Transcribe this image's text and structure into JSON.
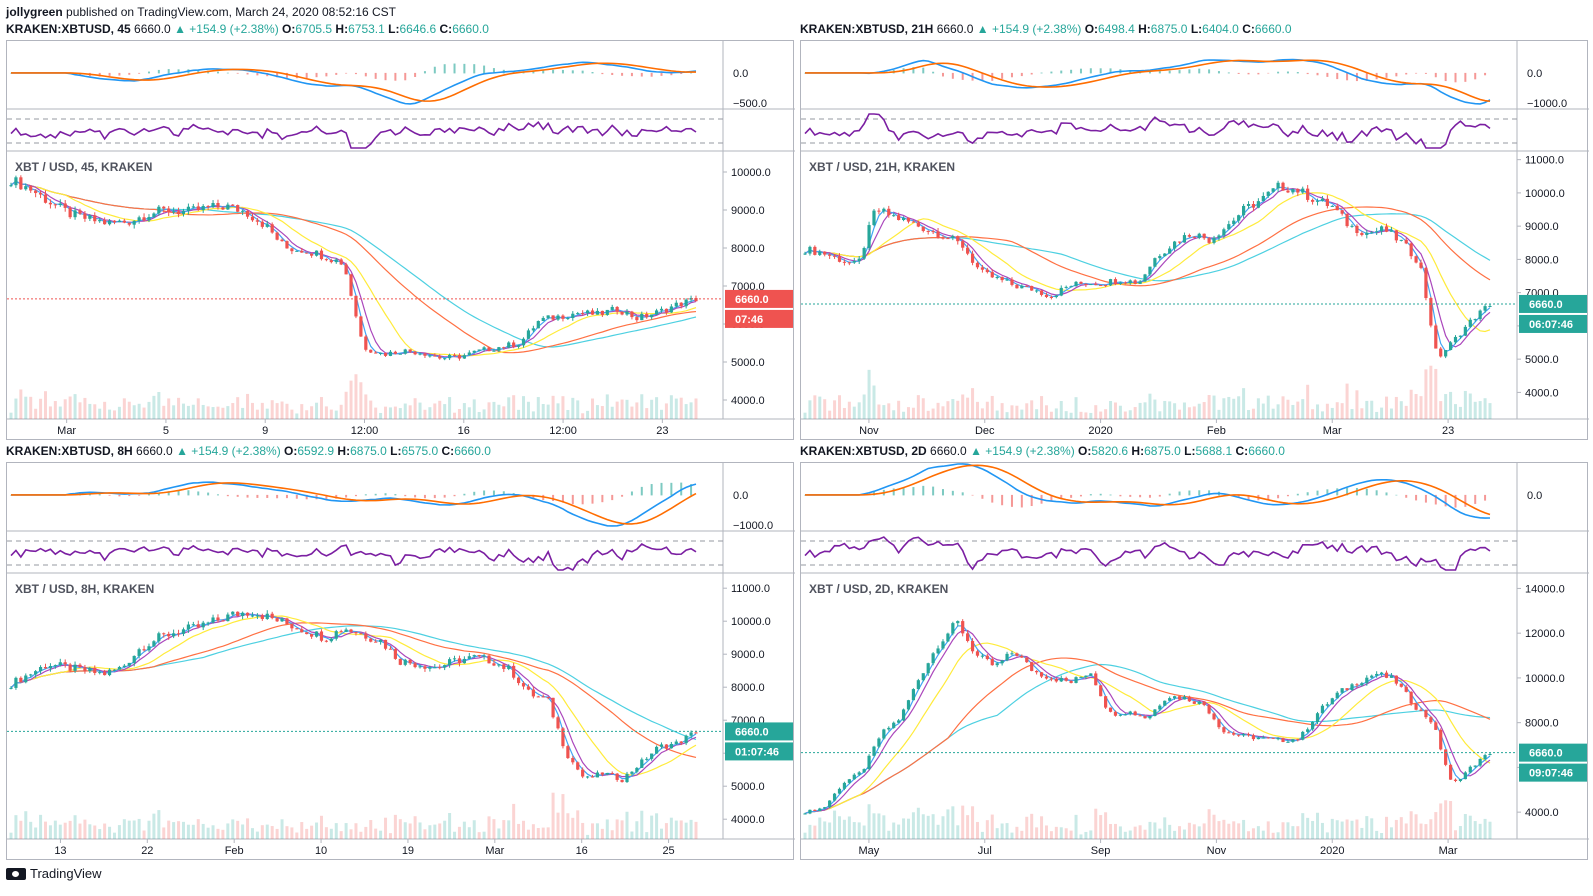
{
  "header": {
    "author": "jollygreen",
    "published": "published on TradingView.com, March 24, 2020 08:52:16 CST"
  },
  "footer": {
    "brand": "TradingView"
  },
  "colors": {
    "up": "#26a69a",
    "down": "#ef5350",
    "macd": "#2196f3",
    "signal": "#ff6d00",
    "rsi": "#7b1fa2",
    "ma_yellow": "#ffeb3b",
    "ma_cyan": "#4dd0e1",
    "ma_orange": "#ff7043",
    "price_line_red": "#ef5350",
    "price_line_teal": "#26a69a"
  },
  "panels": [
    {
      "id": "p45",
      "symbol": "KRAKEN:XBTUSD, 45",
      "price": "6660.0",
      "change": "▲ +154.9 (+2.38%)",
      "o": "6705.5",
      "h": "6753.1",
      "l": "6646.6",
      "c": "6660.0",
      "chart_label": "XBT / USD, 45, KRAKEN",
      "last_price_tag": "6660.0",
      "countdown": "07:46",
      "tag_color": "#ef5350",
      "macd_ticks": [
        "0.0",
        "−500.0"
      ],
      "x_labels": [
        "Mar",
        "5",
        "9",
        "12:00",
        "16",
        "12:00",
        "23"
      ]
    },
    {
      "id": "p21",
      "symbol": "KRAKEN:XBTUSD, 21H",
      "price": "6660.0",
      "change": "▲ +154.9 (+2.38%)",
      "o": "6498.4",
      "h": "6875.0",
      "l": "6404.0",
      "c": "6660.0",
      "chart_label": "XBT / USD, 21H, KRAKEN",
      "last_price_tag": "6660.0",
      "countdown": "06:07:46",
      "tag_color": "#26a69a",
      "macd_ticks": [
        "0.0",
        "−1000.0"
      ],
      "x_labels": [
        "Nov",
        "Dec",
        "2020",
        "Feb",
        "Mar",
        "23"
      ]
    },
    {
      "id": "p8",
      "symbol": "KRAKEN:XBTUSD, 8H",
      "price": "6660.0",
      "change": "▲ +154.9 (+2.38%)",
      "o": "6592.9",
      "h": "6875.0",
      "l": "6575.0",
      "c": "6660.0",
      "chart_label": "XBT / USD, 8H, KRAKEN",
      "last_price_tag": "6660.0",
      "countdown": "01:07:46",
      "tag_color": "#26a69a",
      "macd_ticks": [
        "0.0",
        "−1000.0"
      ],
      "x_labels": [
        "13",
        "22",
        "Feb",
        "10",
        "19",
        "Mar",
        "16",
        "25"
      ]
    },
    {
      "id": "p2d",
      "symbol": "KRAKEN:XBTUSD, 2D",
      "price": "6660.0",
      "change": "▲ +154.9 (+2.38%)",
      "o": "5820.6",
      "h": "6875.0",
      "l": "5688.1",
      "c": "6660.0",
      "chart_label": "XBT / USD, 2D, KRAKEN",
      "last_price_tag": "6660.0",
      "countdown": "09:07:46",
      "tag_color": "#26a69a",
      "macd_ticks": [
        "0.0"
      ],
      "x_labels": [
        "May",
        "Jul",
        "Sep",
        "Nov",
        "2020",
        "Mar"
      ]
    }
  ],
  "chart_data": [
    {
      "type": "line",
      "panel": "p45",
      "ylim": [
        3500,
        10500
      ],
      "y_ticks": [
        4000,
        5000,
        6000,
        7000,
        8000,
        9000,
        10000
      ],
      "series": [
        {
          "values": [
            9800,
            9550,
            9200,
            8900,
            8750,
            8650,
            8700,
            8900,
            9000,
            8950,
            9050,
            9100,
            8950,
            8600,
            8000,
            7950,
            7800,
            7600,
            5400,
            5200,
            5300,
            5250,
            5100,
            5150,
            5300,
            5400,
            5500,
            6100,
            6200,
            6300,
            6250,
            6400,
            6150,
            6300,
            6500,
            6660
          ]
        }
      ]
    },
    {
      "type": "line",
      "panel": "p21",
      "ylim": [
        3200,
        11200
      ],
      "y_ticks": [
        4000,
        5000,
        6000,
        7000,
        8000,
        9000,
        10000,
        11000
      ],
      "series": [
        {
          "values": [
            8300,
            8200,
            8000,
            7800,
            9500,
            9300,
            9100,
            8900,
            8700,
            8400,
            7600,
            7400,
            7200,
            7100,
            6900,
            7200,
            7300,
            7300,
            7400,
            7300,
            8100,
            8500,
            8800,
            8600,
            9000,
            9500,
            9800,
            10200,
            10100,
            9800,
            9600,
            9000,
            8800,
            8900,
            8500,
            7900,
            5000,
            5600,
            6200,
            6660
          ]
        }
      ]
    },
    {
      "type": "line",
      "panel": "p8",
      "ylim": [
        3400,
        11400
      ],
      "y_ticks": [
        4000,
        5000,
        6000,
        7000,
        8000,
        9000,
        10000,
        11000
      ],
      "series": [
        {
          "values": [
            8100,
            8400,
            8700,
            8600,
            8500,
            8400,
            8600,
            9200,
            9500,
            9700,
            9800,
            10000,
            10200,
            10300,
            10100,
            9900,
            9700,
            9500,
            9800,
            9600,
            9400,
            8800,
            8700,
            8600,
            8800,
            8900,
            8800,
            8500,
            7800,
            7600,
            6000,
            5200,
            5400,
            5200,
            5700,
            6200,
            6300,
            6660
          ]
        }
      ]
    },
    {
      "type": "line",
      "panel": "p2d",
      "ylim": [
        2800,
        14600
      ],
      "y_ticks": [
        4000,
        6000,
        8000,
        10000,
        12000,
        14000
      ],
      "series": [
        {
          "values": [
            4000,
            4200,
            5300,
            5800,
            7500,
            8200,
            10000,
            11500,
            12500,
            11000,
            10500,
            11200,
            10300,
            10000,
            9800,
            10300,
            8400,
            8500,
            8200,
            9200,
            9100,
            8800,
            7600,
            7400,
            7300,
            7200,
            7300,
            8500,
            9300,
            9800,
            10200,
            9900,
            8800,
            8000,
            5200,
            6000,
            6660
          ]
        }
      ]
    }
  ]
}
